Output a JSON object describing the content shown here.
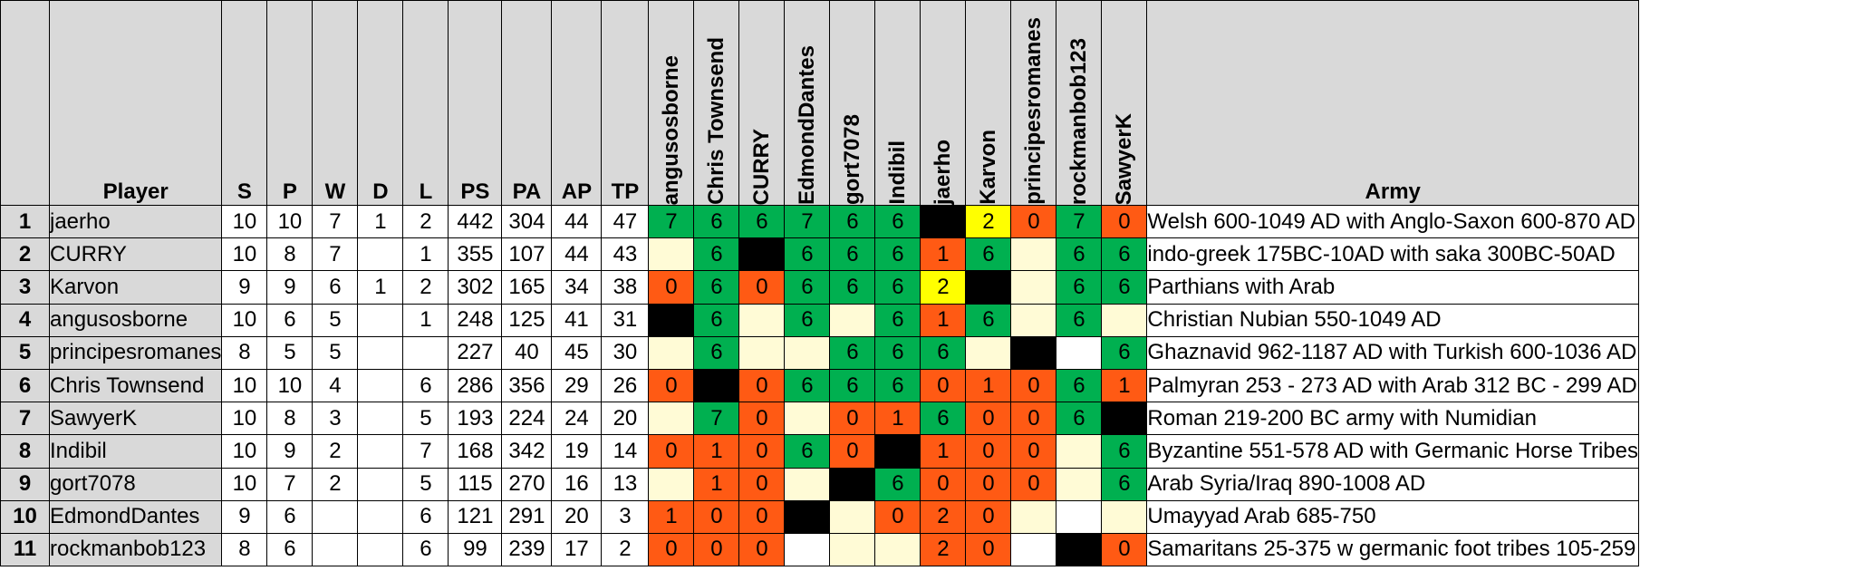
{
  "headers": {
    "row_number": "",
    "player": "Player",
    "stats": [
      "S",
      "P",
      "W",
      "D",
      "L",
      "PS",
      "PA",
      "AP",
      "TP"
    ],
    "opponents": [
      "angusosborne",
      "Chris Townsend",
      "CURRY",
      "EdmondDantes",
      "gort7078",
      "Indibil",
      "jaerho",
      "Karvon",
      "principesromanes",
      "rockmanbob123",
      "SawyerK"
    ],
    "army": "Army"
  },
  "colors": {
    "header_bg": "#d9d9d9",
    "win": "#00b050",
    "loss": "#ff5a14",
    "draw": "#ffff00",
    "no_game": "#fffbd6",
    "self": "#000000",
    "blank": "#ffffff"
  },
  "rows": [
    {
      "rank": "1",
      "player": "jaerho",
      "stats": [
        "10",
        "10",
        "7",
        "1",
        "2",
        "442",
        "304",
        "44",
        "47"
      ],
      "results": [
        {
          "v": "7",
          "c": "win"
        },
        {
          "v": "6",
          "c": "win"
        },
        {
          "v": "6",
          "c": "win"
        },
        {
          "v": "7",
          "c": "win"
        },
        {
          "v": "6",
          "c": "win"
        },
        {
          "v": "6",
          "c": "win"
        },
        {
          "v": "",
          "c": "self"
        },
        {
          "v": "2",
          "c": "draw"
        },
        {
          "v": "0",
          "c": "loss"
        },
        {
          "v": "7",
          "c": "win"
        },
        {
          "v": "0",
          "c": "loss"
        }
      ],
      "army": "Welsh 600-1049 AD with Anglo-Saxon 600-870 AD"
    },
    {
      "rank": "2",
      "player": "CURRY",
      "stats": [
        "10",
        "8",
        "7",
        "",
        "1",
        "355",
        "107",
        "44",
        "43"
      ],
      "results": [
        {
          "v": "",
          "c": "no_game"
        },
        {
          "v": "6",
          "c": "win"
        },
        {
          "v": "",
          "c": "self"
        },
        {
          "v": "6",
          "c": "win"
        },
        {
          "v": "6",
          "c": "win"
        },
        {
          "v": "6",
          "c": "win"
        },
        {
          "v": "1",
          "c": "loss"
        },
        {
          "v": "6",
          "c": "win"
        },
        {
          "v": "",
          "c": "no_game"
        },
        {
          "v": "6",
          "c": "win"
        },
        {
          "v": "6",
          "c": "win"
        }
      ],
      "army": "indo-greek 175BC-10AD with saka 300BC-50AD"
    },
    {
      "rank": "3",
      "player": "Karvon",
      "stats": [
        "9",
        "9",
        "6",
        "1",
        "2",
        "302",
        "165",
        "34",
        "38"
      ],
      "results": [
        {
          "v": "0",
          "c": "loss"
        },
        {
          "v": "6",
          "c": "win"
        },
        {
          "v": "0",
          "c": "loss"
        },
        {
          "v": "6",
          "c": "win"
        },
        {
          "v": "6",
          "c": "win"
        },
        {
          "v": "6",
          "c": "win"
        },
        {
          "v": "2",
          "c": "draw"
        },
        {
          "v": "",
          "c": "self"
        },
        {
          "v": "",
          "c": "no_game"
        },
        {
          "v": "6",
          "c": "win"
        },
        {
          "v": "6",
          "c": "win"
        }
      ],
      "army": "Parthians with Arab"
    },
    {
      "rank": "4",
      "player": "angusosborne",
      "stats": [
        "10",
        "6",
        "5",
        "",
        "1",
        "248",
        "125",
        "41",
        "31"
      ],
      "results": [
        {
          "v": "",
          "c": "self"
        },
        {
          "v": "6",
          "c": "win"
        },
        {
          "v": "",
          "c": "no_game"
        },
        {
          "v": "6",
          "c": "win"
        },
        {
          "v": "",
          "c": "no_game"
        },
        {
          "v": "6",
          "c": "win"
        },
        {
          "v": "1",
          "c": "loss"
        },
        {
          "v": "6",
          "c": "win"
        },
        {
          "v": "",
          "c": "no_game"
        },
        {
          "v": "6",
          "c": "win"
        },
        {
          "v": "",
          "c": "no_game"
        }
      ],
      "army": "Christian Nubian 550-1049 AD"
    },
    {
      "rank": "5",
      "player": "principesromanes",
      "stats": [
        "8",
        "5",
        "5",
        "",
        "",
        "227",
        "40",
        "45",
        "30"
      ],
      "results": [
        {
          "v": "",
          "c": "no_game"
        },
        {
          "v": "6",
          "c": "win"
        },
        {
          "v": "",
          "c": "no_game"
        },
        {
          "v": "",
          "c": "no_game"
        },
        {
          "v": "6",
          "c": "win"
        },
        {
          "v": "6",
          "c": "win"
        },
        {
          "v": "6",
          "c": "win"
        },
        {
          "v": "",
          "c": "no_game"
        },
        {
          "v": "",
          "c": "self"
        },
        {
          "v": "",
          "c": "blank"
        },
        {
          "v": "6",
          "c": "win"
        }
      ],
      "army": "Ghaznavid 962-1187 AD with Turkish 600-1036 AD"
    },
    {
      "rank": "6",
      "player": "Chris Townsend",
      "stats": [
        "10",
        "10",
        "4",
        "",
        "6",
        "286",
        "356",
        "29",
        "26"
      ],
      "results": [
        {
          "v": "0",
          "c": "loss"
        },
        {
          "v": "",
          "c": "self"
        },
        {
          "v": "0",
          "c": "loss"
        },
        {
          "v": "6",
          "c": "win"
        },
        {
          "v": "6",
          "c": "win"
        },
        {
          "v": "6",
          "c": "win"
        },
        {
          "v": "0",
          "c": "loss"
        },
        {
          "v": "1",
          "c": "loss"
        },
        {
          "v": "0",
          "c": "loss"
        },
        {
          "v": "6",
          "c": "win"
        },
        {
          "v": "1",
          "c": "loss"
        }
      ],
      "army": "Palmyran 253 - 273 AD with Arab 312 BC - 299 AD"
    },
    {
      "rank": "7",
      "player": "SawyerK",
      "stats": [
        "10",
        "8",
        "3",
        "",
        "5",
        "193",
        "224",
        "24",
        "20"
      ],
      "results": [
        {
          "v": "",
          "c": "no_game"
        },
        {
          "v": "7",
          "c": "win"
        },
        {
          "v": "0",
          "c": "loss"
        },
        {
          "v": "",
          "c": "no_game"
        },
        {
          "v": "0",
          "c": "loss"
        },
        {
          "v": "1",
          "c": "loss"
        },
        {
          "v": "6",
          "c": "win"
        },
        {
          "v": "0",
          "c": "loss"
        },
        {
          "v": "0",
          "c": "loss"
        },
        {
          "v": "6",
          "c": "win"
        },
        {
          "v": "",
          "c": "self"
        }
      ],
      "army": "Roman 219-200 BC army with Numidian"
    },
    {
      "rank": "8",
      "player": "Indibil",
      "stats": [
        "10",
        "9",
        "2",
        "",
        "7",
        "168",
        "342",
        "19",
        "14"
      ],
      "results": [
        {
          "v": "0",
          "c": "loss"
        },
        {
          "v": "1",
          "c": "loss"
        },
        {
          "v": "0",
          "c": "loss"
        },
        {
          "v": "6",
          "c": "win"
        },
        {
          "v": "0",
          "c": "loss"
        },
        {
          "v": "",
          "c": "self"
        },
        {
          "v": "1",
          "c": "loss"
        },
        {
          "v": "0",
          "c": "loss"
        },
        {
          "v": "0",
          "c": "loss"
        },
        {
          "v": "",
          "c": "no_game"
        },
        {
          "v": "6",
          "c": "win"
        }
      ],
      "army": "Byzantine 551-578 AD with Germanic Horse Tribes"
    },
    {
      "rank": "9",
      "player": "gort7078",
      "stats": [
        "10",
        "7",
        "2",
        "",
        "5",
        "115",
        "270",
        "16",
        "13"
      ],
      "results": [
        {
          "v": "",
          "c": "no_game"
        },
        {
          "v": "1",
          "c": "loss"
        },
        {
          "v": "0",
          "c": "loss"
        },
        {
          "v": "",
          "c": "no_game"
        },
        {
          "v": "",
          "c": "self"
        },
        {
          "v": "6",
          "c": "win"
        },
        {
          "v": "0",
          "c": "loss"
        },
        {
          "v": "0",
          "c": "loss"
        },
        {
          "v": "0",
          "c": "loss"
        },
        {
          "v": "",
          "c": "no_game"
        },
        {
          "v": "6",
          "c": "win"
        }
      ],
      "army": "Arab Syria/Iraq 890-1008 AD"
    },
    {
      "rank": "10",
      "player": "EdmondDantes",
      "stats": [
        "9",
        "6",
        "",
        "",
        "6",
        "121",
        "291",
        "20",
        "3"
      ],
      "results": [
        {
          "v": "1",
          "c": "loss"
        },
        {
          "v": "0",
          "c": "loss"
        },
        {
          "v": "0",
          "c": "loss"
        },
        {
          "v": "",
          "c": "self"
        },
        {
          "v": "",
          "c": "no_game"
        },
        {
          "v": "0",
          "c": "loss"
        },
        {
          "v": "2",
          "c": "loss"
        },
        {
          "v": "0",
          "c": "loss"
        },
        {
          "v": "",
          "c": "no_game"
        },
        {
          "v": "",
          "c": "blank"
        },
        {
          "v": "",
          "c": "no_game"
        }
      ],
      "army": "Umayyad Arab 685-750"
    },
    {
      "rank": "11",
      "player": "rockmanbob123",
      "stats": [
        "8",
        "6",
        "",
        "",
        "6",
        "99",
        "239",
        "17",
        "2"
      ],
      "results": [
        {
          "v": "0",
          "c": "loss"
        },
        {
          "v": "0",
          "c": "loss"
        },
        {
          "v": "0",
          "c": "loss"
        },
        {
          "v": "",
          "c": "blank"
        },
        {
          "v": "",
          "c": "no_game"
        },
        {
          "v": "",
          "c": "no_game"
        },
        {
          "v": "2",
          "c": "loss"
        },
        {
          "v": "0",
          "c": "loss"
        },
        {
          "v": "",
          "c": "blank"
        },
        {
          "v": "",
          "c": "self"
        },
        {
          "v": "0",
          "c": "loss"
        }
      ],
      "army": "Samaritans 25-375 w germanic foot tribes 105-259"
    }
  ]
}
